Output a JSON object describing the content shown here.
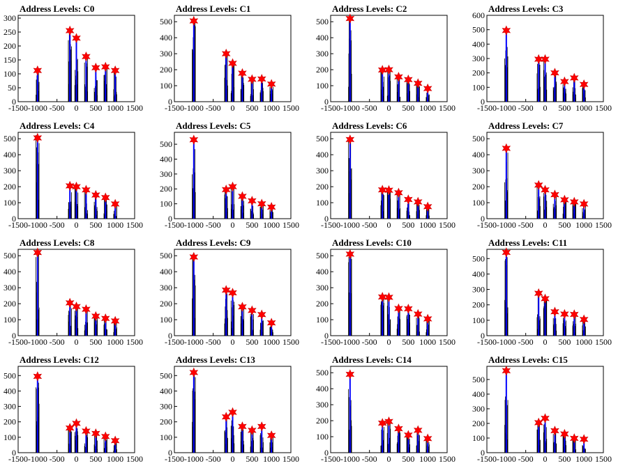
{
  "layout": {
    "rows": 4,
    "cols": 4
  },
  "colors": {
    "peak_line": "#0000ff",
    "noise_line": "#000000",
    "marker": "#ff0000",
    "marker_edge": "#cc0000"
  },
  "chart_data": [
    {
      "type": "line",
      "title": "Address Levels: C0",
      "xlim": [
        -1500,
        1500
      ],
      "ylim": [
        0,
        310
      ],
      "yticks": [
        0,
        50,
        100,
        150,
        200,
        250,
        300
      ],
      "xticks": [
        "-1500",
        "-1000",
        "-500",
        "0",
        "500",
        "1000",
        "1500"
      ],
      "peaks": [
        {
          "x": -1000,
          "y": 112
        },
        {
          "x": -167,
          "y": 255
        },
        {
          "x": 0,
          "y": 228
        },
        {
          "x": 250,
          "y": 162
        },
        {
          "x": 500,
          "y": 122
        },
        {
          "x": 750,
          "y": 125
        },
        {
          "x": 1000,
          "y": 112
        }
      ]
    },
    {
      "type": "line",
      "title": "Address Levels: C1",
      "xlim": [
        -1500,
        1500
      ],
      "ylim": [
        0,
        540
      ],
      "yticks": [
        0,
        100,
        200,
        300,
        400,
        500
      ],
      "xticks": [
        "-1500",
        "-1000",
        "-500",
        "0",
        "500",
        "1000",
        "1500"
      ],
      "peaks": [
        {
          "x": -1000,
          "y": 505
        },
        {
          "x": -167,
          "y": 300
        },
        {
          "x": 0,
          "y": 240
        },
        {
          "x": 250,
          "y": 178
        },
        {
          "x": 500,
          "y": 140
        },
        {
          "x": 750,
          "y": 142
        },
        {
          "x": 1000,
          "y": 110
        }
      ]
    },
    {
      "type": "line",
      "title": "Address Levels: C2",
      "xlim": [
        -1500,
        1500
      ],
      "ylim": [
        0,
        540
      ],
      "yticks": [
        0,
        100,
        200,
        300,
        400,
        500
      ],
      "xticks": [
        "-1500",
        "-1000",
        "-500",
        "0",
        "500",
        "1000",
        "1500"
      ],
      "peaks": [
        {
          "x": -1000,
          "y": 520
        },
        {
          "x": -167,
          "y": 198
        },
        {
          "x": 0,
          "y": 200
        },
        {
          "x": 250,
          "y": 155
        },
        {
          "x": 500,
          "y": 138
        },
        {
          "x": 750,
          "y": 115
        },
        {
          "x": 1000,
          "y": 82
        }
      ]
    },
    {
      "type": "line",
      "title": "Address Levels: C3",
      "xlim": [
        -1500,
        1500
      ],
      "ylim": [
        0,
        600
      ],
      "yticks": [
        0,
        100,
        200,
        300,
        400,
        500,
        600
      ],
      "xticks": [
        "-1500",
        "-1000",
        "-500",
        "0",
        "500",
        "1000",
        "1500"
      ],
      "peaks": [
        {
          "x": -1000,
          "y": 495
        },
        {
          "x": -167,
          "y": 295
        },
        {
          "x": 0,
          "y": 295
        },
        {
          "x": 250,
          "y": 200
        },
        {
          "x": 500,
          "y": 140
        },
        {
          "x": 750,
          "y": 165
        },
        {
          "x": 1000,
          "y": 120
        }
      ]
    },
    {
      "type": "line",
      "title": "Address Levels: C4",
      "xlim": [
        -1500,
        1500
      ],
      "ylim": [
        0,
        540
      ],
      "yticks": [
        0,
        100,
        200,
        300,
        400,
        500
      ],
      "xticks": [
        "-1500",
        "-1000",
        "-500",
        "0",
        "500",
        "1000",
        "1500"
      ],
      "peaks": [
        {
          "x": -1000,
          "y": 505
        },
        {
          "x": -167,
          "y": 205
        },
        {
          "x": 0,
          "y": 200
        },
        {
          "x": 250,
          "y": 180
        },
        {
          "x": 500,
          "y": 148
        },
        {
          "x": 750,
          "y": 132
        },
        {
          "x": 1000,
          "y": 92
        }
      ]
    },
    {
      "type": "line",
      "title": "Address Levels: C5",
      "xlim": [
        -1500,
        1500
      ],
      "ylim": [
        0,
        580
      ],
      "yticks": [
        0,
        100,
        200,
        300,
        400,
        500
      ],
      "xticks": [
        "-1500",
        "-1000",
        "-500",
        "0",
        "500",
        "1000",
        "1500"
      ],
      "peaks": [
        {
          "x": -1000,
          "y": 530
        },
        {
          "x": -167,
          "y": 195
        },
        {
          "x": 0,
          "y": 215
        },
        {
          "x": 250,
          "y": 150
        },
        {
          "x": 500,
          "y": 120
        },
        {
          "x": 750,
          "y": 100
        },
        {
          "x": 1000,
          "y": 78
        }
      ]
    },
    {
      "type": "line",
      "title": "Address Levels: C6",
      "xlim": [
        -1500,
        1500
      ],
      "ylim": [
        0,
        540
      ],
      "yticks": [
        0,
        100,
        200,
        300,
        400,
        500
      ],
      "xticks": [
        "-1500",
        "-1000",
        "-500",
        "0",
        "500",
        "1000",
        "1500"
      ],
      "peaks": [
        {
          "x": -1000,
          "y": 495
        },
        {
          "x": -167,
          "y": 180
        },
        {
          "x": 0,
          "y": 178
        },
        {
          "x": 250,
          "y": 162
        },
        {
          "x": 500,
          "y": 120
        },
        {
          "x": 750,
          "y": 105
        },
        {
          "x": 1000,
          "y": 75
        }
      ]
    },
    {
      "type": "line",
      "title": "Address Levels: C7",
      "xlim": [
        -1500,
        1500
      ],
      "ylim": [
        0,
        540
      ],
      "yticks": [
        0,
        100,
        200,
        300,
        400,
        500
      ],
      "xticks": [
        "-1500",
        "-1000",
        "-500",
        "0",
        "500",
        "1000",
        "1500"
      ],
      "peaks": [
        {
          "x": -1000,
          "y": 440
        },
        {
          "x": -167,
          "y": 210
        },
        {
          "x": 0,
          "y": 180
        },
        {
          "x": 250,
          "y": 150
        },
        {
          "x": 500,
          "y": 118
        },
        {
          "x": 750,
          "y": 105
        },
        {
          "x": 1000,
          "y": 92
        }
      ]
    },
    {
      "type": "line",
      "title": "Address Levels: C8",
      "xlim": [
        -1500,
        1500
      ],
      "ylim": [
        0,
        540
      ],
      "yticks": [
        0,
        100,
        200,
        300,
        400,
        500
      ],
      "xticks": [
        "-1500",
        "-1000",
        "-500",
        "0",
        "500",
        "1000",
        "1500"
      ],
      "peaks": [
        {
          "x": -1000,
          "y": 520
        },
        {
          "x": -167,
          "y": 205
        },
        {
          "x": 0,
          "y": 182
        },
        {
          "x": 250,
          "y": 165
        },
        {
          "x": 500,
          "y": 122
        },
        {
          "x": 750,
          "y": 108
        },
        {
          "x": 1000,
          "y": 92
        }
      ]
    },
    {
      "type": "line",
      "title": "Address Levels: C9",
      "xlim": [
        -1500,
        1500
      ],
      "ylim": [
        0,
        540
      ],
      "yticks": [
        0,
        100,
        200,
        300,
        400,
        500
      ],
      "xticks": [
        "-1500",
        "-1000",
        "-500",
        "0",
        "500",
        "1000",
        "1500"
      ],
      "peaks": [
        {
          "x": -1000,
          "y": 492
        },
        {
          "x": -167,
          "y": 285
        },
        {
          "x": 0,
          "y": 268
        },
        {
          "x": 250,
          "y": 180
        },
        {
          "x": 500,
          "y": 158
        },
        {
          "x": 750,
          "y": 132
        },
        {
          "x": 1000,
          "y": 80
        }
      ]
    },
    {
      "type": "line",
      "title": "Address Levels: C10",
      "xlim": [
        -1500,
        1500
      ],
      "ylim": [
        0,
        540
      ],
      "yticks": [
        0,
        100,
        200,
        300,
        400,
        500
      ],
      "xticks": [
        "-1500",
        "-1000",
        "-500",
        "0",
        "500",
        "1000",
        "1500"
      ],
      "peaks": [
        {
          "x": -1000,
          "y": 510
        },
        {
          "x": -167,
          "y": 242
        },
        {
          "x": 0,
          "y": 240
        },
        {
          "x": 250,
          "y": 170
        },
        {
          "x": 500,
          "y": 168
        },
        {
          "x": 750,
          "y": 135
        },
        {
          "x": 1000,
          "y": 105
        }
      ]
    },
    {
      "type": "line",
      "title": "Address Levels: C11",
      "xlim": [
        -1500,
        1500
      ],
      "ylim": [
        0,
        560
      ],
      "yticks": [
        0,
        100,
        200,
        300,
        400,
        500
      ],
      "xticks": [
        "-1500",
        "-1000",
        "-500",
        "0",
        "500",
        "1000",
        "1500"
      ],
      "peaks": [
        {
          "x": -1000,
          "y": 540
        },
        {
          "x": -167,
          "y": 275
        },
        {
          "x": 0,
          "y": 240
        },
        {
          "x": 250,
          "y": 155
        },
        {
          "x": 500,
          "y": 140
        },
        {
          "x": 750,
          "y": 138
        },
        {
          "x": 1000,
          "y": 105
        }
      ]
    },
    {
      "type": "line",
      "title": "Address Levels: C12",
      "xlim": [
        -1500,
        1500
      ],
      "ylim": [
        0,
        560
      ],
      "yticks": [
        0,
        100,
        200,
        300,
        400,
        500
      ],
      "xticks": [
        "-1500",
        "-1000",
        "-500",
        "0",
        "500",
        "1000",
        "1500"
      ],
      "peaks": [
        {
          "x": -1000,
          "y": 495
        },
        {
          "x": -167,
          "y": 160
        },
        {
          "x": 0,
          "y": 190
        },
        {
          "x": 250,
          "y": 140
        },
        {
          "x": 500,
          "y": 125
        },
        {
          "x": 750,
          "y": 105
        },
        {
          "x": 1000,
          "y": 78
        }
      ]
    },
    {
      "type": "line",
      "title": "Address Levels: C13",
      "xlim": [
        -1500,
        1500
      ],
      "ylim": [
        0,
        560
      ],
      "yticks": [
        0,
        100,
        200,
        300,
        400,
        500
      ],
      "xticks": [
        "-1500",
        "-1000",
        "-500",
        "0",
        "500",
        "1000",
        "1500"
      ],
      "peaks": [
        {
          "x": -1000,
          "y": 520
        },
        {
          "x": -167,
          "y": 232
        },
        {
          "x": 0,
          "y": 262
        },
        {
          "x": 250,
          "y": 170
        },
        {
          "x": 500,
          "y": 145
        },
        {
          "x": 750,
          "y": 170
        },
        {
          "x": 1000,
          "y": 112
        }
      ]
    },
    {
      "type": "line",
      "title": "Address Levels: C14",
      "xlim": [
        -1500,
        1500
      ],
      "ylim": [
        0,
        540
      ],
      "yticks": [
        0,
        100,
        200,
        300,
        400,
        500
      ],
      "xticks": [
        "-1500",
        "-1000",
        "-500",
        "0",
        "500",
        "1000",
        "1500"
      ],
      "peaks": [
        {
          "x": -1000,
          "y": 490
        },
        {
          "x": -167,
          "y": 185
        },
        {
          "x": 0,
          "y": 195
        },
        {
          "x": 250,
          "y": 150
        },
        {
          "x": 500,
          "y": 110
        },
        {
          "x": 750,
          "y": 140
        },
        {
          "x": 1000,
          "y": 88
        }
      ]
    },
    {
      "type": "line",
      "title": "Address Levels: C15",
      "xlim": [
        -1500,
        1500
      ],
      "ylim": [
        0,
        590
      ],
      "yticks": [
        0,
        100,
        200,
        300,
        400,
        500
      ],
      "xticks": [
        "-1500",
        "-1000",
        "-500",
        "0",
        "500",
        "1000",
        "1500"
      ],
      "peaks": [
        {
          "x": -1000,
          "y": 560
        },
        {
          "x": -167,
          "y": 205
        },
        {
          "x": 0,
          "y": 235
        },
        {
          "x": 250,
          "y": 150
        },
        {
          "x": 500,
          "y": 128
        },
        {
          "x": 750,
          "y": 98
        },
        {
          "x": 1000,
          "y": 92
        }
      ]
    }
  ]
}
